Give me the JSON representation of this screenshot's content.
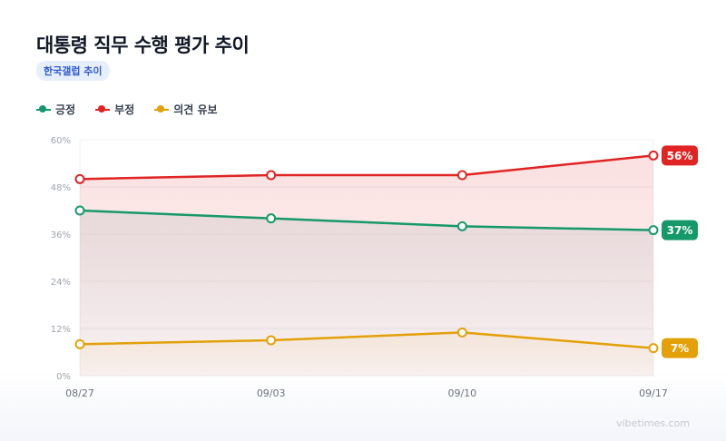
{
  "header": {
    "title": "대통령 직무 수행 평가 추이",
    "badge": "한국갤럽 추이"
  },
  "footer": {
    "watermark": "vibetimes.com"
  },
  "chart_data": {
    "type": "line",
    "title": "대통령 직무 수행 평가 추이",
    "subtitle": "한국갤럽 추이",
    "categories": [
      "08/27",
      "09/03",
      "09/10",
      "09/17"
    ],
    "ylim": [
      0,
      60
    ],
    "yticks": [
      0,
      12,
      24,
      36,
      48,
      60
    ],
    "ytick_labels": [
      "0%",
      "12%",
      "24%",
      "36%",
      "48%",
      "60%"
    ],
    "grid": true,
    "legend": "top-left",
    "series": [
      {
        "name": "긍정",
        "color": "#15996a",
        "values": [
          42,
          40,
          38,
          37
        ],
        "end_label": "37%"
      },
      {
        "name": "부정",
        "color": "#e02424",
        "values": [
          50,
          51,
          51,
          56
        ],
        "end_label": "56%"
      },
      {
        "name": "의견 유보",
        "color": "#e3a008",
        "values": [
          8,
          9,
          11,
          7
        ],
        "end_label": "7%"
      }
    ]
  }
}
